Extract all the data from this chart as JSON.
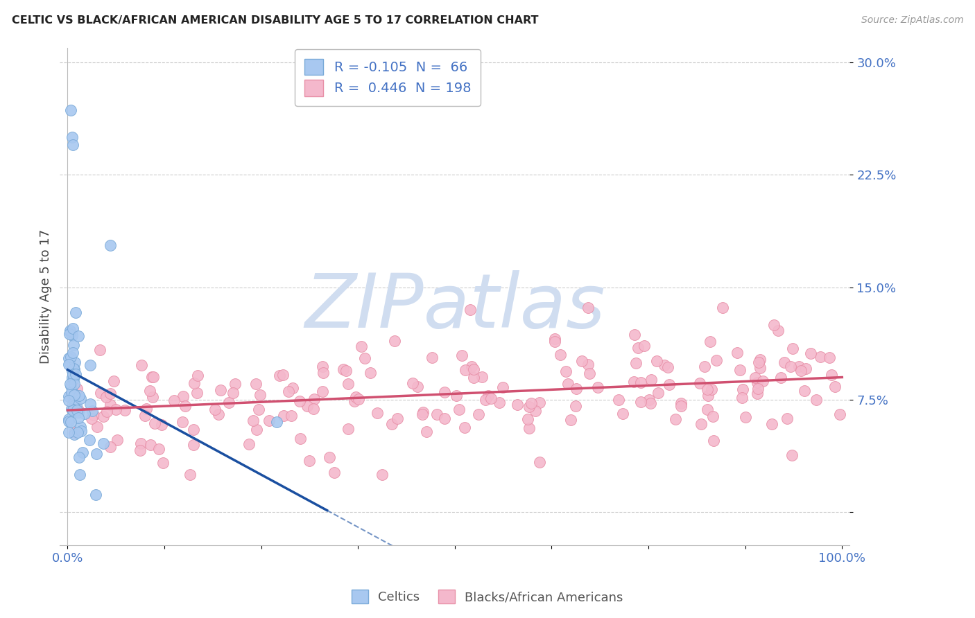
{
  "title": "CELTIC VS BLACK/AFRICAN AMERICAN DISABILITY AGE 5 TO 17 CORRELATION CHART",
  "source": "Source: ZipAtlas.com",
  "ylabel": "Disability Age 5 to 17",
  "ytick_color": "#4472c4",
  "celtics_color": "#a8c8f0",
  "celtics_edge_color": "#7aaad8",
  "blacks_color": "#f4b8cc",
  "blacks_edge_color": "#e890a8",
  "celtics_R": -0.105,
  "celtics_N": 66,
  "blacks_R": 0.446,
  "blacks_N": 198,
  "celtics_line_color": "#1a4fa0",
  "blacks_line_color": "#d05070",
  "watermark_color": "#d0ddf0",
  "legend_celtics": "Celtics",
  "legend_blacks": "Blacks/African Americans"
}
